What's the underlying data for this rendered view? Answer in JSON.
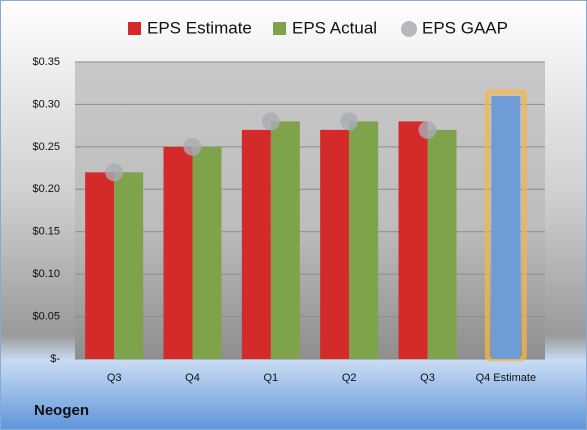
{
  "chart_data": {
    "type": "bar",
    "company": "Neogen",
    "categories": [
      "Q3",
      "Q4",
      "Q1",
      "Q2",
      "Q3",
      "Q4 Estimate"
    ],
    "series": [
      {
        "name": "EPS Estimate",
        "color": "#d42a2a",
        "values": [
          0.22,
          0.25,
          0.27,
          0.27,
          0.28,
          0.31
        ]
      },
      {
        "name": "EPS Actual",
        "color": "#7fa34a",
        "values": [
          0.22,
          0.25,
          0.28,
          0.28,
          0.27,
          null
        ]
      },
      {
        "name": "EPS GAAP",
        "color": "#a9adb3",
        "marker": "dot",
        "values": [
          0.22,
          0.25,
          0.28,
          0.28,
          0.27,
          null
        ]
      }
    ],
    "highlight": {
      "color": "#6f9bd6",
      "glow": "#f5b54a"
    },
    "ylim": [
      0,
      0.35
    ],
    "yticks": [
      {
        "value": 0,
        "label": "$-"
      },
      {
        "value": 0.05,
        "label": "$0.05"
      },
      {
        "value": 0.1,
        "label": "$0.10"
      },
      {
        "value": 0.15,
        "label": "$0.15"
      },
      {
        "value": 0.2,
        "label": "$0.20"
      },
      {
        "value": 0.25,
        "label": "$0.25"
      },
      {
        "value": 0.3,
        "label": "$0.30"
      },
      {
        "value": 0.35,
        "label": "$0.35"
      }
    ],
    "grid": true
  }
}
